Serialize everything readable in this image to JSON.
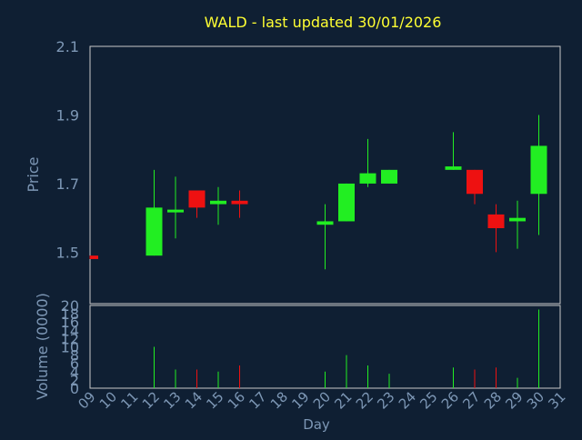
{
  "chart_data": {
    "type": "candlestick",
    "title": "WALD - last updated 30/01/2026",
    "colors": {
      "background": "#0f1f33",
      "title": "#ffff33",
      "axis_text": "#7d97b5",
      "gridline": "#c8c8c8",
      "up": "#22ee22",
      "down": "#ee1111"
    },
    "price_panel": {
      "ylabel": "Price",
      "ylim": [
        1.35,
        2.1
      ],
      "yticks": [
        {
          "value": 1.5,
          "label": "1.5"
        },
        {
          "value": 1.7,
          "label": "1.7"
        },
        {
          "value": 1.9,
          "label": "1.9"
        },
        {
          "value": 2.1,
          "label": "2.1"
        }
      ]
    },
    "volume_panel": {
      "ylabel": "Volume (0000)",
      "ylim": [
        0,
        20
      ],
      "yticks": [
        {
          "value": 0,
          "label": "0"
        },
        {
          "value": 2,
          "label": "2"
        },
        {
          "value": 4,
          "label": "4"
        },
        {
          "value": 6,
          "label": "6"
        },
        {
          "value": 8,
          "label": "8"
        },
        {
          "value": 10,
          "label": "10"
        },
        {
          "value": 12,
          "label": "12"
        },
        {
          "value": 14,
          "label": "14"
        },
        {
          "value": 16,
          "label": "16"
        },
        {
          "value": 18,
          "label": "18"
        },
        {
          "value": 20,
          "label": "20"
        }
      ]
    },
    "xlabel": "Day",
    "x_range": [
      9,
      31
    ],
    "x_ticks": [
      "09",
      "10",
      "11",
      "12",
      "13",
      "14",
      "15",
      "16",
      "17",
      "18",
      "19",
      "20",
      "21",
      "22",
      "23",
      "24",
      "25",
      "26",
      "27",
      "28",
      "29",
      "30",
      "31"
    ],
    "x_gridlines": [
      9,
      11,
      13,
      15,
      17,
      19,
      21,
      23,
      25,
      27,
      29,
      31
    ],
    "candles": [
      {
        "day": 9,
        "open": 1.49,
        "high": 1.49,
        "low": 1.48,
        "close": 1.48,
        "volume": 0
      },
      {
        "day": 12,
        "open": 1.49,
        "high": 1.74,
        "low": 1.49,
        "close": 1.63,
        "volume": 10
      },
      {
        "day": 13,
        "open": 1.62,
        "high": 1.72,
        "low": 1.54,
        "close": 1.62,
        "volume": 4.5
      },
      {
        "day": 14,
        "open": 1.68,
        "high": 1.68,
        "low": 1.6,
        "close": 1.63,
        "volume": 4.5
      },
      {
        "day": 15,
        "open": 1.64,
        "high": 1.69,
        "low": 1.58,
        "close": 1.65,
        "volume": 4
      },
      {
        "day": 16,
        "open": 1.65,
        "high": 1.68,
        "low": 1.6,
        "close": 1.64,
        "volume": 5.5
      },
      {
        "day": 20,
        "open": 1.58,
        "high": 1.64,
        "low": 1.45,
        "close": 1.59,
        "volume": 4
      },
      {
        "day": 21,
        "open": 1.59,
        "high": 1.7,
        "low": 1.59,
        "close": 1.7,
        "volume": 8
      },
      {
        "day": 22,
        "open": 1.7,
        "high": 1.83,
        "low": 1.69,
        "close": 1.73,
        "volume": 5.5
      },
      {
        "day": 23,
        "open": 1.7,
        "high": 1.74,
        "low": 1.7,
        "close": 1.74,
        "volume": 3.5
      },
      {
        "day": 26,
        "open": 1.74,
        "high": 1.85,
        "low": 1.74,
        "close": 1.75,
        "volume": 5
      },
      {
        "day": 27,
        "open": 1.74,
        "high": 1.74,
        "low": 1.64,
        "close": 1.67,
        "volume": 4.5
      },
      {
        "day": 28,
        "open": 1.61,
        "high": 1.64,
        "low": 1.5,
        "close": 1.57,
        "volume": 5
      },
      {
        "day": 29,
        "open": 1.59,
        "high": 1.65,
        "low": 1.51,
        "close": 1.6,
        "volume": 2.5
      },
      {
        "day": 30,
        "open": 1.67,
        "high": 1.9,
        "low": 1.55,
        "close": 1.81,
        "volume": 19
      }
    ]
  }
}
